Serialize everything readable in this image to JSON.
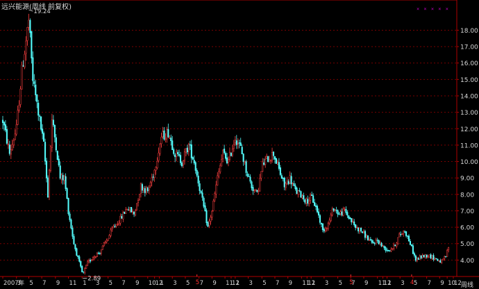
{
  "header": {
    "title": "远兴能源(周线 前复权)",
    "legend_markers": "× × × × ×"
  },
  "footer": {
    "period_label": "周线"
  },
  "colors": {
    "background": "#000000",
    "up": "#ff4040",
    "down": "#54fcfc",
    "grid": "#7a0000",
    "axis": "#b00000",
    "text": "#d8d8d8",
    "marker": "#c000c0",
    "event_marker": "#ff3030"
  },
  "chart_data": {
    "type": "candlestick",
    "title": "远兴能源(周线 前复权)",
    "ylim": [
      3.0,
      19.5
    ],
    "y_ticks": [
      "4.00",
      "5.00",
      "6.00",
      "7.00",
      "8.00",
      "9.00",
      "10.00",
      "11.00",
      "12.00",
      "13.00",
      "14.00",
      "15.00",
      "16.00",
      "17.00",
      "18.00"
    ],
    "x_ticks": [
      {
        "week": 0,
        "label": "2007年"
      },
      {
        "week": 20,
        "label": "3"
      },
      {
        "week": 38,
        "label": "5"
      },
      {
        "week": 57,
        "label": "7"
      },
      {
        "week": 77,
        "label": "9"
      },
      {
        "week": 96,
        "label": "11"
      },
      {
        "week": 116,
        "label": "1"
      },
      {
        "week": 135,
        "label": "3"
      },
      {
        "week": 154,
        "label": "5"
      },
      {
        "week": 173,
        "label": "7"
      },
      {
        "week": 193,
        "label": "9"
      },
      {
        "week": 212,
        "label": "10"
      },
      {
        "week": 222,
        "label": "12"
      },
      {
        "week": 229,
        "label": "1"
      },
      {
        "week": 248,
        "label": "3"
      },
      {
        "week": 267,
        "label": "5"
      },
      {
        "week": 287,
        "label": "7"
      },
      {
        "week": 306,
        "label": "9"
      },
      {
        "week": 325,
        "label": "11"
      },
      {
        "week": 334,
        "label": "12"
      },
      {
        "week": 340,
        "label": "1"
      },
      {
        "week": 359,
        "label": "3"
      },
      {
        "week": 379,
        "label": "5"
      },
      {
        "week": 398,
        "label": "7"
      },
      {
        "week": 417,
        "label": "9"
      },
      {
        "week": 437,
        "label": "11"
      },
      {
        "week": 445,
        "label": "12"
      },
      {
        "week": 451,
        "label": "1"
      },
      {
        "week": 470,
        "label": "3"
      },
      {
        "week": 490,
        "label": "5"
      },
      {
        "week": 509,
        "label": "7"
      },
      {
        "week": 528,
        "label": "9"
      },
      {
        "week": 548,
        "label": "11"
      },
      {
        "week": 556,
        "label": "12"
      },
      {
        "week": 562,
        "label": "1"
      },
      {
        "week": 581,
        "label": "3"
      },
      {
        "week": 600,
        "label": "5"
      },
      {
        "week": 620,
        "label": "7"
      },
      {
        "week": 639,
        "label": "9"
      },
      {
        "week": 650,
        "label": "10"
      },
      {
        "week": 659,
        "label": "12"
      }
    ],
    "event_markers": [
      {
        "week": 284,
        "label": "5"
      },
      {
        "week": 509,
        "label": "5"
      },
      {
        "week": 598,
        "label": "4"
      }
    ],
    "annotations": [
      {
        "label": "19.24",
        "week": 38,
        "price": 19.24
      },
      {
        "label": "2.89",
        "week": 117,
        "price": 2.89
      }
    ],
    "week_count": 660,
    "trend_points": [
      [
        0,
        12.5
      ],
      [
        10,
        10.5
      ],
      [
        20,
        12.0
      ],
      [
        28,
        15.5
      ],
      [
        38,
        18.6
      ],
      [
        44,
        15.0
      ],
      [
        52,
        13.0
      ],
      [
        60,
        11.0
      ],
      [
        66,
        8.0
      ],
      [
        72,
        12.5
      ],
      [
        78,
        11.0
      ],
      [
        84,
        9.0
      ],
      [
        90,
        9.0
      ],
      [
        96,
        7.0
      ],
      [
        104,
        5.0
      ],
      [
        112,
        3.8
      ],
      [
        117,
        3.1
      ],
      [
        124,
        3.8
      ],
      [
        132,
        4.2
      ],
      [
        142,
        4.5
      ],
      [
        152,
        5.2
      ],
      [
        162,
        6.0
      ],
      [
        172,
        6.5
      ],
      [
        182,
        7.2
      ],
      [
        192,
        6.8
      ],
      [
        202,
        8.5
      ],
      [
        212,
        8.2
      ],
      [
        222,
        9.5
      ],
      [
        232,
        11.5
      ],
      [
        242,
        11.8
      ],
      [
        252,
        10.5
      ],
      [
        262,
        10.0
      ],
      [
        272,
        11.0
      ],
      [
        280,
        10.0
      ],
      [
        290,
        8.0
      ],
      [
        300,
        6.0
      ],
      [
        306,
        7.0
      ],
      [
        314,
        9.0
      ],
      [
        322,
        10.5
      ],
      [
        330,
        10.0
      ],
      [
        340,
        11.5
      ],
      [
        348,
        10.8
      ],
      [
        356,
        9.5
      ],
      [
        364,
        8.5
      ],
      [
        372,
        8.0
      ],
      [
        380,
        9.8
      ],
      [
        388,
        10.2
      ],
      [
        396,
        10.5
      ],
      [
        404,
        9.5
      ],
      [
        412,
        8.5
      ],
      [
        420,
        9.0
      ],
      [
        428,
        8.2
      ],
      [
        436,
        8.0
      ],
      [
        444,
        7.6
      ],
      [
        452,
        7.8
      ],
      [
        460,
        7.0
      ],
      [
        468,
        5.8
      ],
      [
        476,
        6.2
      ],
      [
        484,
        7.2
      ],
      [
        492,
        6.8
      ],
      [
        500,
        7.0
      ],
      [
        508,
        6.5
      ],
      [
        516,
        6.0
      ],
      [
        524,
        5.8
      ],
      [
        532,
        5.4
      ],
      [
        540,
        5.0
      ],
      [
        548,
        5.2
      ],
      [
        556,
        4.8
      ],
      [
        564,
        4.6
      ],
      [
        572,
        4.8
      ],
      [
        580,
        5.5
      ],
      [
        588,
        5.8
      ],
      [
        596,
        5.0
      ],
      [
        604,
        4.0
      ],
      [
        612,
        4.2
      ],
      [
        620,
        4.3
      ],
      [
        628,
        4.2
      ],
      [
        636,
        4.0
      ],
      [
        642,
        3.9
      ],
      [
        648,
        4.2
      ],
      [
        652,
        4.8
      ]
    ]
  }
}
